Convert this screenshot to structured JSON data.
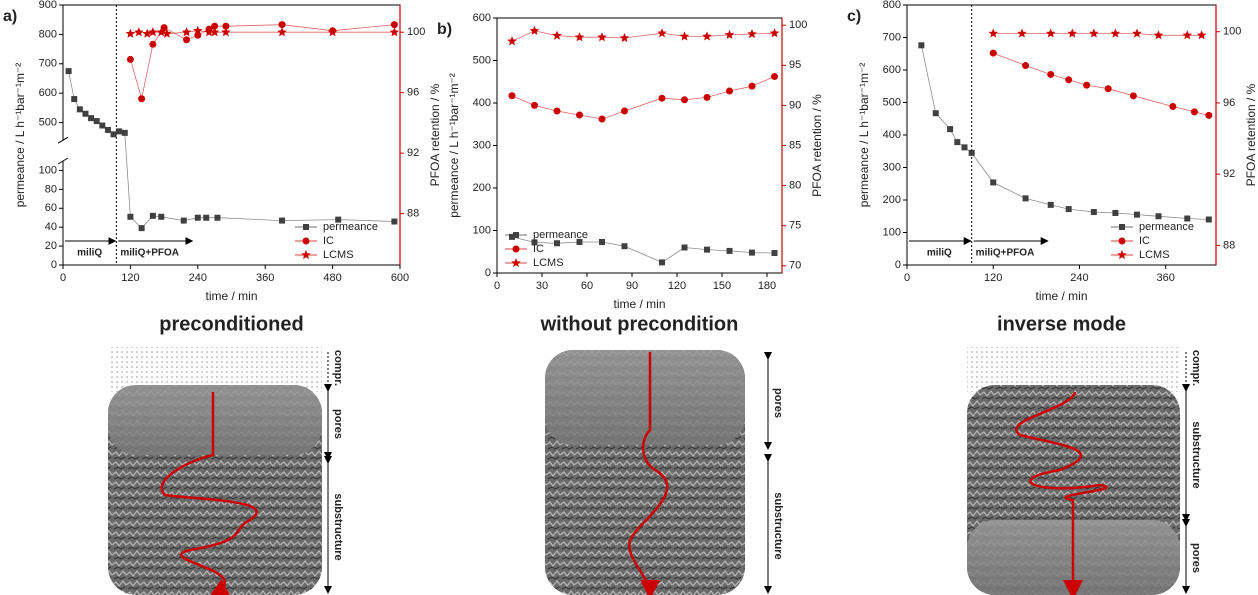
{
  "chart_data": [
    {
      "type": "line",
      "label": "a)",
      "caption": "preconditioned",
      "layers": [
        "compr.",
        "pores",
        "substructure"
      ],
      "xlabel": "time / min",
      "ylabel": "permeance / L h⁻¹bar⁻¹m⁻²",
      "y2label": "PFOA retention / %",
      "xlim": [
        0,
        600
      ],
      "xticks": [
        0,
        120,
        240,
        360,
        480,
        600
      ],
      "ylim": [
        0,
        900
      ],
      "ybreak": [
        110,
        440
      ],
      "yticks": [
        0,
        20,
        40,
        60,
        80,
        100,
        500,
        600,
        700,
        800,
        900
      ],
      "y2lim": [
        84.6,
        101.8
      ],
      "y2ticks": [
        88,
        92,
        96,
        100
      ],
      "vline": 95,
      "annotations": [
        "miliQ",
        "miliQ+PFOA"
      ],
      "legend": "lower right",
      "series": [
        {
          "name": "permeance",
          "color": "#404040",
          "marker": "square",
          "axis": "y",
          "x": [
            10,
            20,
            30,
            40,
            50,
            60,
            70,
            80,
            90,
            100,
            110,
            120,
            140,
            160,
            175,
            215,
            240,
            255,
            275,
            390,
            490,
            590
          ],
          "values": [
            675,
            580,
            545,
            530,
            515,
            505,
            490,
            475,
            460,
            470,
            465,
            51,
            39,
            52,
            51,
            47,
            50,
            50,
            50,
            47,
            48,
            46
          ]
        },
        {
          "name": "IC",
          "color": "#cc0000",
          "marker": "circle",
          "axis": "y2",
          "x": [
            120,
            140,
            160,
            180,
            220,
            240,
            260,
            270,
            290,
            390,
            480,
            590
          ],
          "values": [
            98.2,
            95.6,
            99.2,
            100.3,
            99.5,
            99.8,
            100.2,
            100.4,
            100.4,
            100.5,
            100.1,
            100.5
          ]
        },
        {
          "name": "LCMS",
          "color": "#cc0000",
          "marker": "star",
          "axis": "y2",
          "x": [
            120,
            135,
            150,
            160,
            175,
            185,
            220,
            240,
            260,
            270,
            290,
            390,
            480,
            590
          ],
          "values": [
            99.9,
            100.0,
            99.9,
            100.0,
            100.0,
            99.9,
            100.0,
            100.1,
            100.0,
            100.0,
            100.0,
            100.0,
            100.0,
            100.0
          ]
        }
      ]
    },
    {
      "type": "line",
      "label": "b)",
      "caption": "without precondition",
      "layers": [
        "pores",
        "substructure"
      ],
      "xlabel": "time / min",
      "ylabel": "permeance / L h⁻¹bar⁻¹m⁻²",
      "y2label": "PFOA retention / %",
      "xlim": [
        0,
        190
      ],
      "xticks": [
        0,
        30,
        60,
        90,
        120,
        150,
        180
      ],
      "ylim": [
        0,
        600
      ],
      "yticks": [
        0,
        100,
        200,
        300,
        400,
        500,
        600
      ],
      "y2lim": [
        69.1,
        100.9
      ],
      "y2ticks": [
        70,
        75,
        80,
        85,
        90,
        95,
        100
      ],
      "legend": "lower left",
      "series": [
        {
          "name": "permeance",
          "color": "#404040",
          "marker": "square",
          "axis": "y",
          "x": [
            10,
            25,
            40,
            55,
            70,
            85,
            110,
            125,
            140,
            155,
            170,
            185
          ],
          "values": [
            85,
            72,
            70,
            73,
            73,
            63,
            25,
            60,
            55,
            52,
            48,
            47
          ]
        },
        {
          "name": "IC",
          "color": "#cc0000",
          "marker": "circle",
          "axis": "y2",
          "x": [
            10,
            25,
            40,
            55,
            70,
            85,
            110,
            125,
            140,
            155,
            170,
            185
          ],
          "values": [
            91.2,
            90.0,
            89.3,
            88.8,
            88.3,
            89.3,
            90.9,
            90.7,
            91.0,
            91.8,
            92.4,
            93.6
          ]
        },
        {
          "name": "LCMS",
          "color": "#cc0000",
          "marker": "star",
          "axis": "y2",
          "x": [
            10,
            25,
            40,
            55,
            70,
            85,
            110,
            125,
            140,
            155,
            170,
            185
          ],
          "values": [
            98.0,
            99.3,
            98.7,
            98.5,
            98.5,
            98.4,
            99.0,
            98.6,
            98.6,
            98.8,
            98.9,
            99.0
          ]
        }
      ]
    },
    {
      "type": "line",
      "label": "c)",
      "caption": "inverse mode",
      "layers": [
        "compr.",
        "substructure",
        "pores"
      ],
      "xlabel": "time / min",
      "ylabel": "permeance / L h⁻¹bar⁻¹m⁻²",
      "y2label": "PFOA retention / %",
      "xlim": [
        0,
        430
      ],
      "xticks": [
        0,
        120,
        240,
        360
      ],
      "ylim": [
        0,
        800
      ],
      "yticks": [
        0,
        100,
        200,
        300,
        400,
        500,
        600,
        700,
        800
      ],
      "y2lim": [
        86.9,
        101.5
      ],
      "y2ticks": [
        88,
        92,
        96,
        100
      ],
      "vline": 90,
      "annotations": [
        "miliQ",
        "miliQ+PFOA"
      ],
      "legend": "lower right",
      "series": [
        {
          "name": "permeance",
          "color": "#404040",
          "marker": "square",
          "axis": "y",
          "x": [
            20,
            40,
            60,
            70,
            80,
            90,
            120,
            165,
            200,
            225,
            260,
            290,
            320,
            350,
            390,
            420
          ],
          "values": [
            676,
            467,
            418,
            378,
            362,
            345,
            254,
            205,
            185,
            172,
            163,
            160,
            155,
            150,
            143,
            140
          ]
        },
        {
          "name": "IC",
          "color": "#cc0000",
          "marker": "circle",
          "axis": "y2",
          "x": [
            120,
            165,
            200,
            225,
            250,
            280,
            315,
            370,
            400,
            420
          ],
          "values": [
            98.8,
            98.1,
            97.6,
            97.3,
            97.0,
            96.8,
            96.4,
            95.8,
            95.5,
            95.3
          ]
        },
        {
          "name": "LCMS",
          "color": "#cc0000",
          "marker": "star",
          "axis": "y2",
          "x": [
            120,
            160,
            200,
            230,
            260,
            290,
            320,
            350,
            390,
            410
          ],
          "values": [
            99.9,
            99.9,
            99.9,
            99.9,
            99.9,
            99.9,
            99.9,
            99.8,
            99.8,
            99.8
          ]
        }
      ]
    }
  ]
}
